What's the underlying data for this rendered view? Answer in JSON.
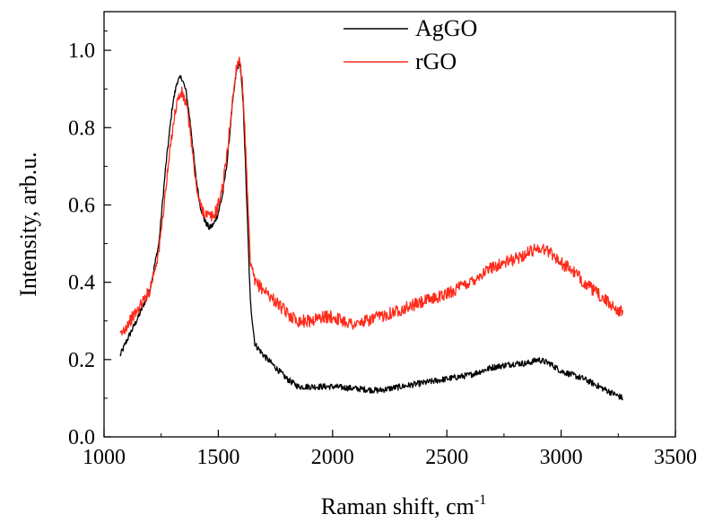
{
  "chart_data": {
    "type": "line",
    "title": "",
    "xlabel": "Raman shift, cm",
    "xlabel_superscript": "-1",
    "ylabel": "Intensity, arb.u.",
    "xlim": [
      1000,
      3500
    ],
    "ylim": [
      0.0,
      1.1
    ],
    "x_ticks": [
      1000,
      1500,
      2000,
      2500,
      3000,
      3500
    ],
    "x_tick_labels": [
      "1000",
      "1500",
      "2000",
      "2500",
      "3000",
      "3500"
    ],
    "y_ticks": [
      0.0,
      0.2,
      0.4,
      0.6,
      0.8,
      1.0
    ],
    "y_tick_labels": [
      "0.0",
      "0.2",
      "0.4",
      "0.6",
      "0.8",
      "1.0"
    ],
    "grid": false,
    "legend_position": "top-center",
    "series": [
      {
        "name": "AgGO",
        "color": "#000000",
        "noise": 0.008,
        "x": [
          1070,
          1100,
          1150,
          1200,
          1240,
          1270,
          1300,
          1320,
          1340,
          1360,
          1380,
          1400,
          1420,
          1440,
          1460,
          1480,
          1500,
          1520,
          1540,
          1560,
          1580,
          1595,
          1610,
          1625,
          1640,
          1660,
          1700,
          1750,
          1800,
          1850,
          1900,
          1950,
          2000,
          2100,
          2200,
          2300,
          2400,
          2500,
          2600,
          2700,
          2800,
          2850,
          2900,
          2950,
          3000,
          3100,
          3200,
          3270
        ],
        "y": [
          0.21,
          0.25,
          0.31,
          0.38,
          0.5,
          0.7,
          0.86,
          0.92,
          0.93,
          0.89,
          0.8,
          0.68,
          0.6,
          0.56,
          0.54,
          0.55,
          0.58,
          0.63,
          0.72,
          0.85,
          0.95,
          0.97,
          0.85,
          0.6,
          0.35,
          0.24,
          0.21,
          0.18,
          0.15,
          0.13,
          0.13,
          0.13,
          0.13,
          0.125,
          0.12,
          0.13,
          0.14,
          0.15,
          0.16,
          0.18,
          0.19,
          0.19,
          0.2,
          0.19,
          0.17,
          0.15,
          0.12,
          0.1
        ]
      },
      {
        "name": "rGO",
        "color": "#ff2a1a",
        "noise": 0.016,
        "x": [
          1070,
          1100,
          1150,
          1200,
          1240,
          1270,
          1300,
          1320,
          1340,
          1360,
          1380,
          1400,
          1420,
          1440,
          1460,
          1480,
          1500,
          1520,
          1540,
          1560,
          1580,
          1595,
          1610,
          1625,
          1640,
          1660,
          1700,
          1750,
          1800,
          1850,
          1900,
          1950,
          2000,
          2050,
          2100,
          2150,
          2200,
          2300,
          2400,
          2500,
          2600,
          2650,
          2700,
          2800,
          2900,
          2950,
          3000,
          3050,
          3100,
          3200,
          3270
        ],
        "y": [
          0.26,
          0.29,
          0.33,
          0.38,
          0.48,
          0.64,
          0.8,
          0.87,
          0.89,
          0.86,
          0.78,
          0.66,
          0.6,
          0.58,
          0.57,
          0.57,
          0.6,
          0.65,
          0.74,
          0.86,
          0.96,
          0.98,
          0.88,
          0.66,
          0.45,
          0.4,
          0.38,
          0.35,
          0.32,
          0.3,
          0.3,
          0.31,
          0.31,
          0.3,
          0.29,
          0.3,
          0.31,
          0.33,
          0.35,
          0.37,
          0.4,
          0.42,
          0.44,
          0.46,
          0.49,
          0.48,
          0.45,
          0.43,
          0.4,
          0.35,
          0.32
        ]
      }
    ]
  }
}
